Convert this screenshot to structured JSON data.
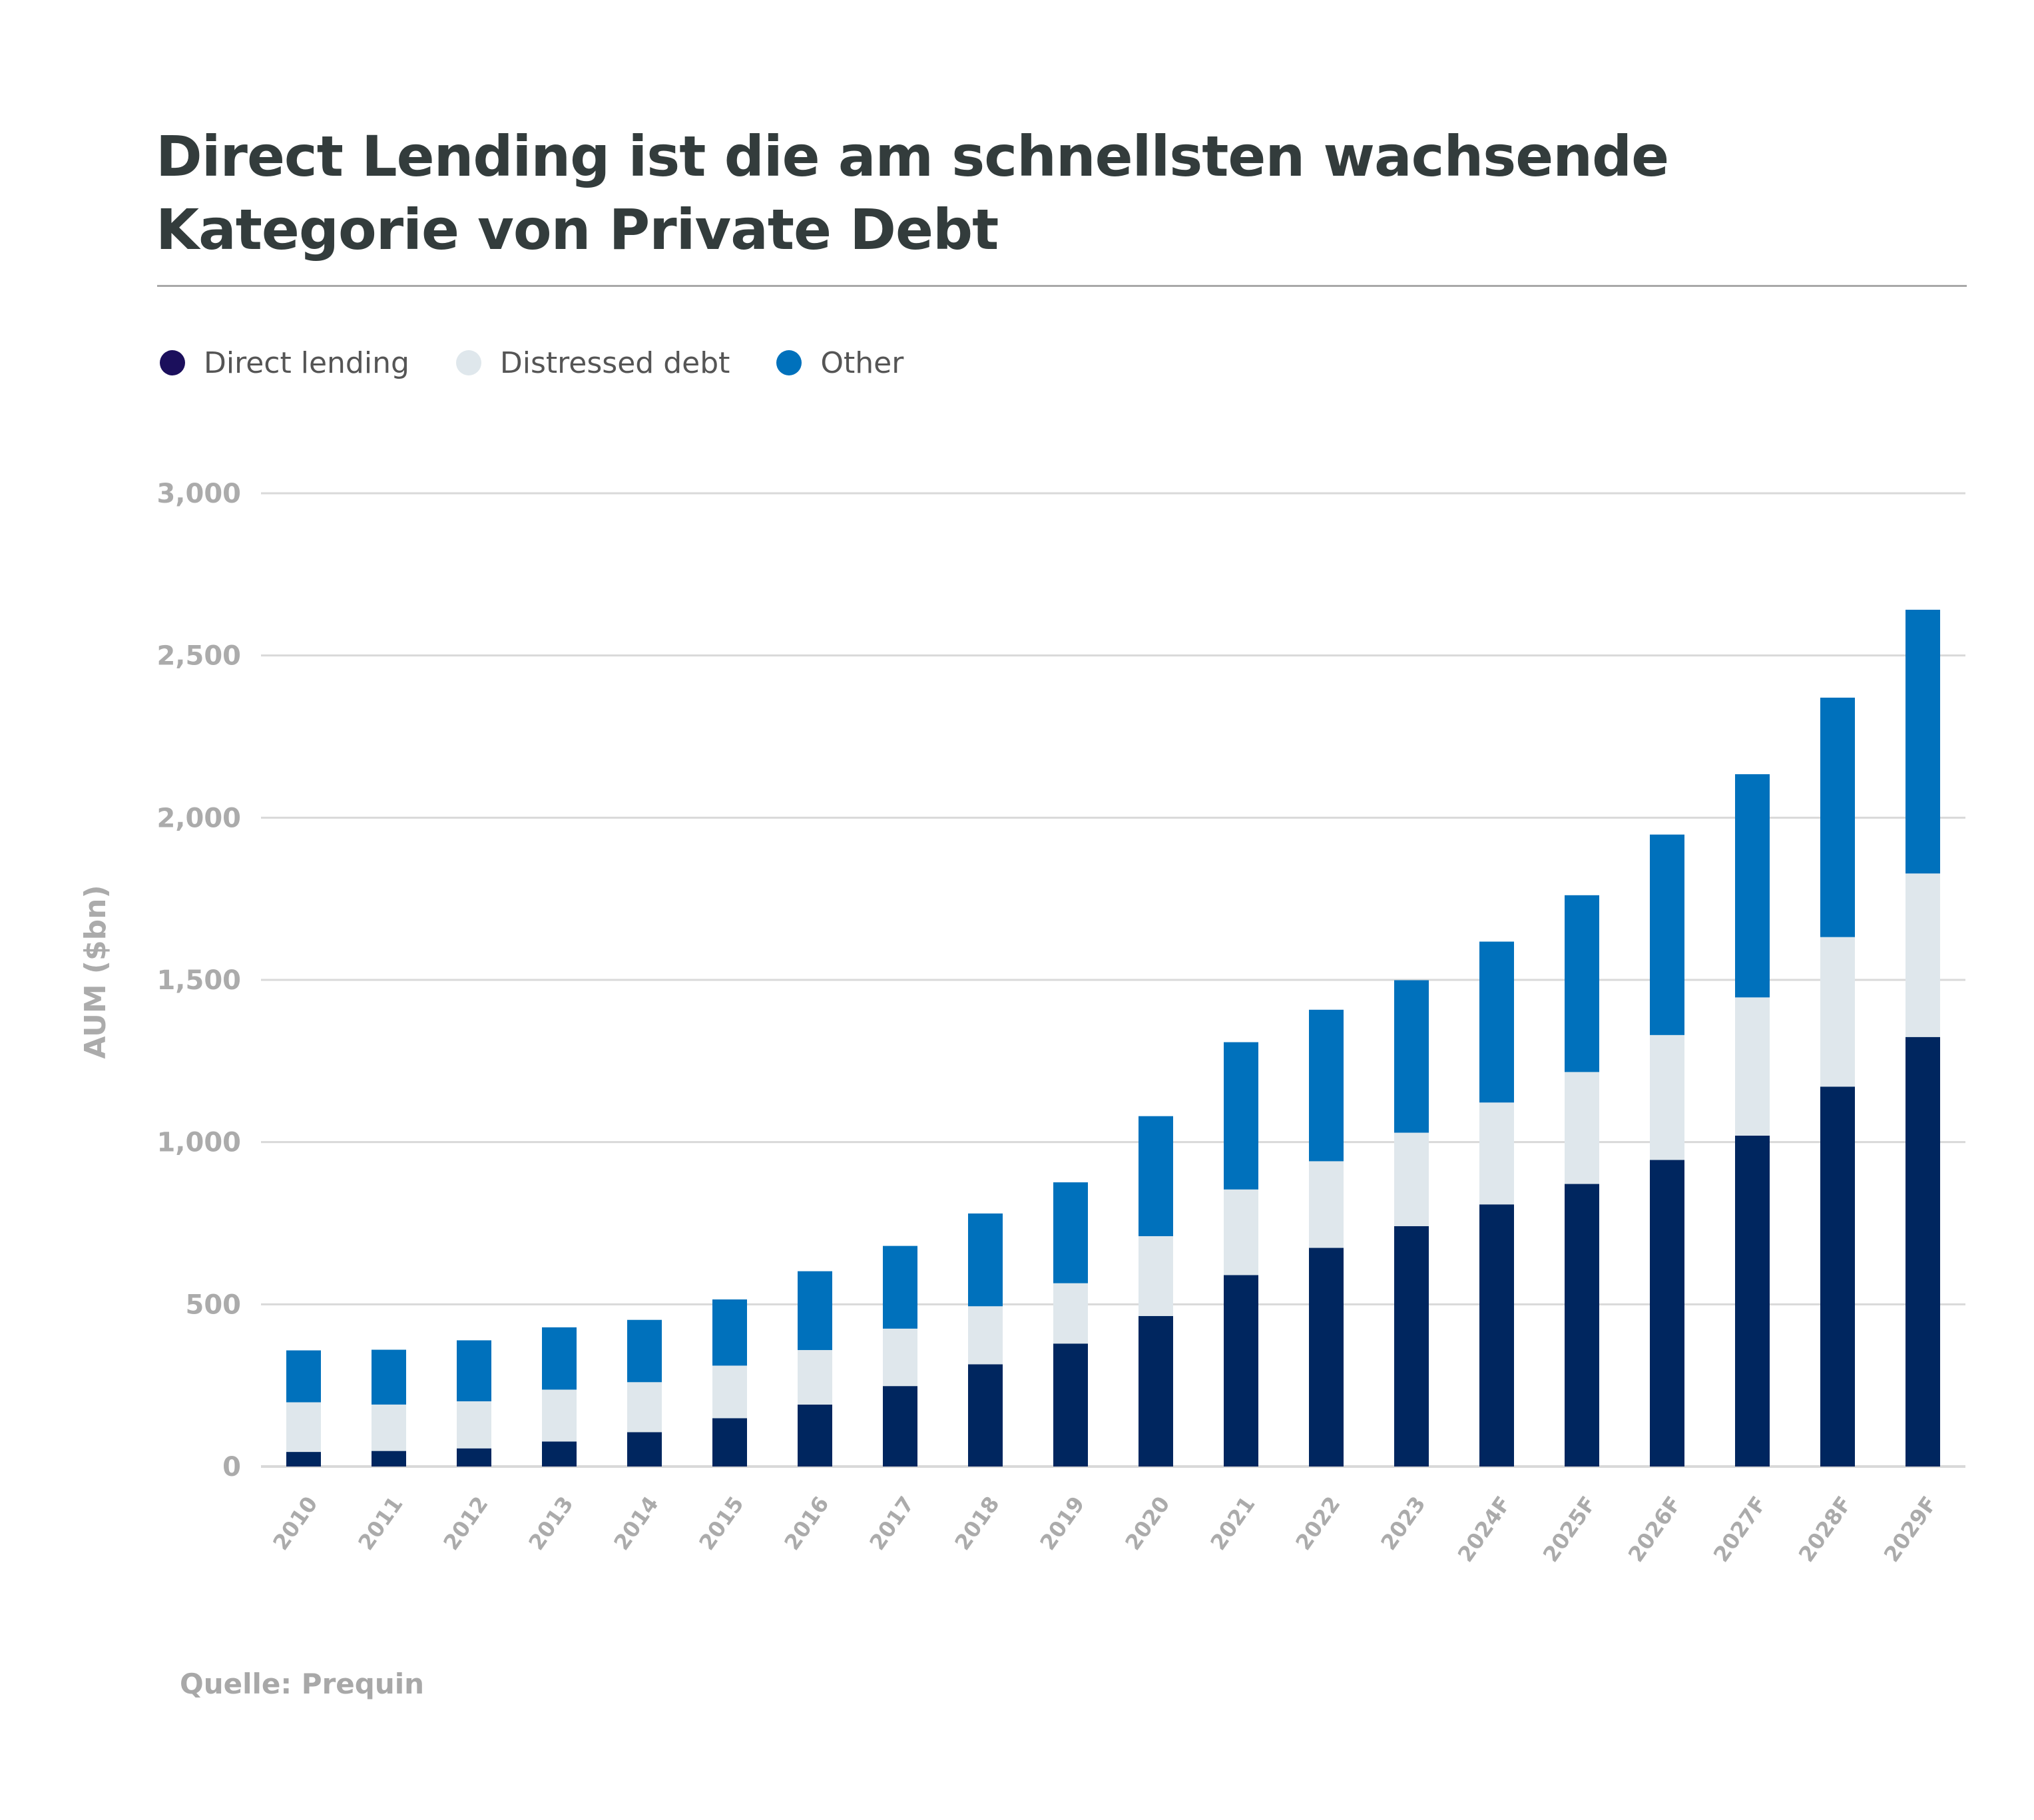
{
  "header": {
    "title_line1": "Direct Lending ist die am schnellsten wachsende",
    "title_line2": "Kategorie von Private Debt"
  },
  "legend": [
    {
      "label": "Direct lending",
      "color": "#1b0f5c"
    },
    {
      "label": "Distressed debt",
      "color": "#dfe7ec"
    },
    {
      "label": "Other",
      "color": "#0071bc"
    }
  ],
  "footer": {
    "source": "Quelle: Prequin"
  },
  "chart_data": {
    "type": "bar",
    "stacked": true,
    "title": "Direct Lending ist die am schnellsten wachsende Kategorie von Private Debt",
    "xlabel": "",
    "ylabel": "AUM ($bn)",
    "ylim": [
      0,
      3000
    ],
    "yticks": [
      0,
      500,
      1000,
      1500,
      2000,
      2500,
      3000
    ],
    "ytick_labels": [
      "0",
      "500",
      "1,000",
      "1,500",
      "2,000",
      "2,500",
      "3,000"
    ],
    "grid": true,
    "legend_position": "top-left",
    "categories": [
      "2010",
      "2011",
      "2012",
      "2013",
      "2014",
      "2015",
      "2016",
      "2017",
      "2018",
      "2019",
      "2020",
      "2021",
      "2022",
      "2023",
      "2024F",
      "2025F",
      "2026F",
      "2027F",
      "2028F",
      "2029F"
    ],
    "series": [
      {
        "name": "Direct lending",
        "color": "#00265f",
        "values": [
          45,
          48,
          56,
          77,
          106,
          149,
          191,
          248,
          315,
          379,
          464,
          590,
          674,
          741,
          808,
          871,
          945,
          1020,
          1171,
          1324
        ]
      },
      {
        "name": "Distressed debt",
        "color": "#dfe7ec",
        "values": [
          153,
          143,
          145,
          160,
          154,
          162,
          168,
          177,
          179,
          186,
          246,
          264,
          267,
          288,
          314,
          345,
          385,
          426,
          461,
          504
        ]
      },
      {
        "name": "Other",
        "color": "#0071bc",
        "values": [
          160,
          169,
          188,
          192,
          192,
          204,
          243,
          255,
          286,
          311,
          370,
          454,
          467,
          470,
          496,
          545,
          618,
          688,
          738,
          813
        ]
      }
    ],
    "totals": [
      358,
      360,
      389,
      429,
      452,
      515,
      602,
      680,
      780,
      876,
      1080,
      1308,
      1408,
      1499,
      1618,
      1761,
      1948,
      2134,
      2370,
      2641
    ],
    "source": "Quelle: Prequin"
  }
}
